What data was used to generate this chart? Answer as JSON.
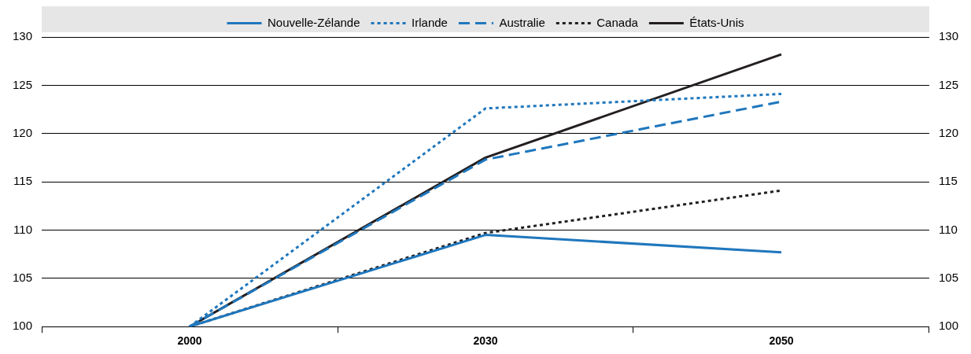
{
  "chart_data": {
    "type": "line",
    "categories": [
      "2000",
      "2030",
      "2050"
    ],
    "series": [
      {
        "name": "Nouvelle-Zélande",
        "color": "#1f77bd",
        "line_style": "solid",
        "values": [
          100,
          109.5,
          107.7
        ]
      },
      {
        "name": "Irlande",
        "color": "#1f77bd",
        "line_style": "dotted",
        "values": [
          100,
          122.6,
          124.1
        ]
      },
      {
        "name": "Australie",
        "color": "#1f77bd",
        "line_style": "dashed",
        "values": [
          100,
          117.3,
          123.3
        ]
      },
      {
        "name": "Canada",
        "color": "#231f20",
        "line_style": "dotted",
        "values": [
          100,
          109.7,
          114.1
        ]
      },
      {
        "name": "États-Unis",
        "color": "#231f20",
        "line_style": "solid",
        "values": [
          100,
          117.5,
          128.2
        ]
      }
    ],
    "ylim": [
      100,
      130
    ],
    "yticks": [
      100,
      105,
      110,
      115,
      120,
      125,
      130
    ],
    "y2lim": [
      100,
      130
    ],
    "y2ticks": [
      100,
      105,
      110,
      115,
      120,
      125,
      130
    ],
    "grid": "y",
    "legend": "top",
    "marker": "none"
  }
}
